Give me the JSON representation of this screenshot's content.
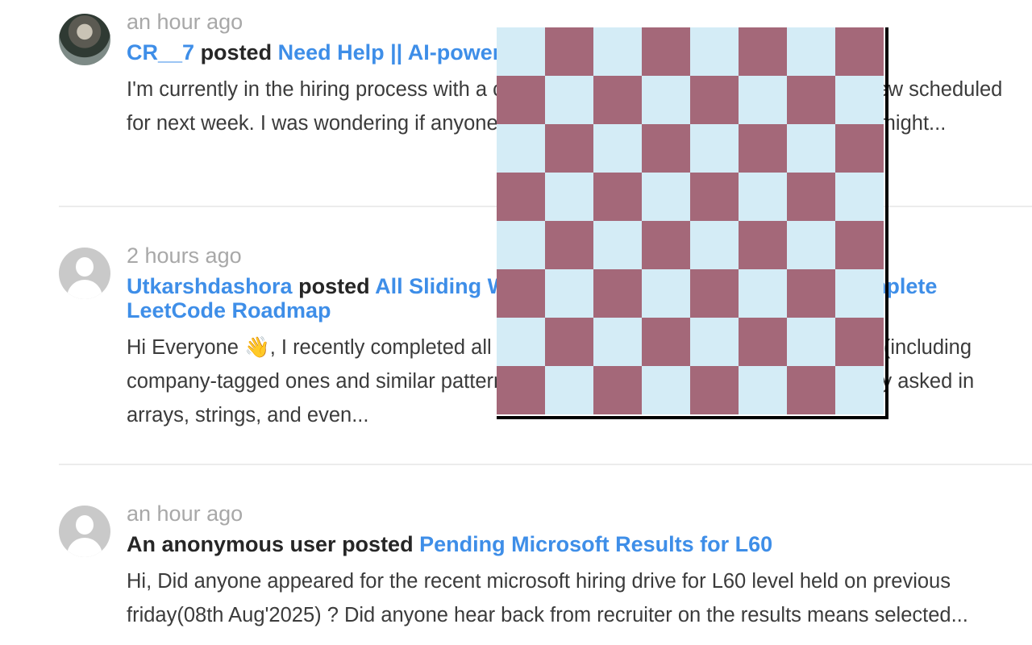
{
  "posts": [
    {
      "time": "an hour ago",
      "user": "CR__7",
      "verb": "posted",
      "title": "Need Help || AI-powered Interview",
      "excerpt": "I'm currently in the hiring process with a company and I have an AI-powered interview scheduled for next week. I was wondering if anyone has experience with this kind of context I might..."
    },
    {
      "time": "2 hours ago",
      "user": "Utkarshdashora",
      "verb": "posted",
      "title": "All Sliding Window Problems on LeetCode – Complete LeetCode Roadmap",
      "excerpt": "Hi Everyone 👋, I recently completed all the sliding window problems on LeetCode (including company-tagged ones and similar patterns) in detail. These problems are commonly asked in arrays, strings, and even..."
    },
    {
      "time": "an hour ago",
      "user": "An anonymous user",
      "verb": "posted",
      "title": "Pending Microsoft Results for L60",
      "excerpt": "Hi, Did anyone appeared for the recent microsoft hiring drive for L60 level held on previous friday(08th Aug'2025) ? Did anyone hear back from recruiter on the results means selected..."
    }
  ],
  "overlay": {
    "rows": 8,
    "cols": 8,
    "color_light": "#d4ecf6",
    "color_dark": "#a46879"
  },
  "colors": {
    "accent": "#3e8ee8",
    "timestamp": "#a8a8a8",
    "divider": "#ececec"
  }
}
